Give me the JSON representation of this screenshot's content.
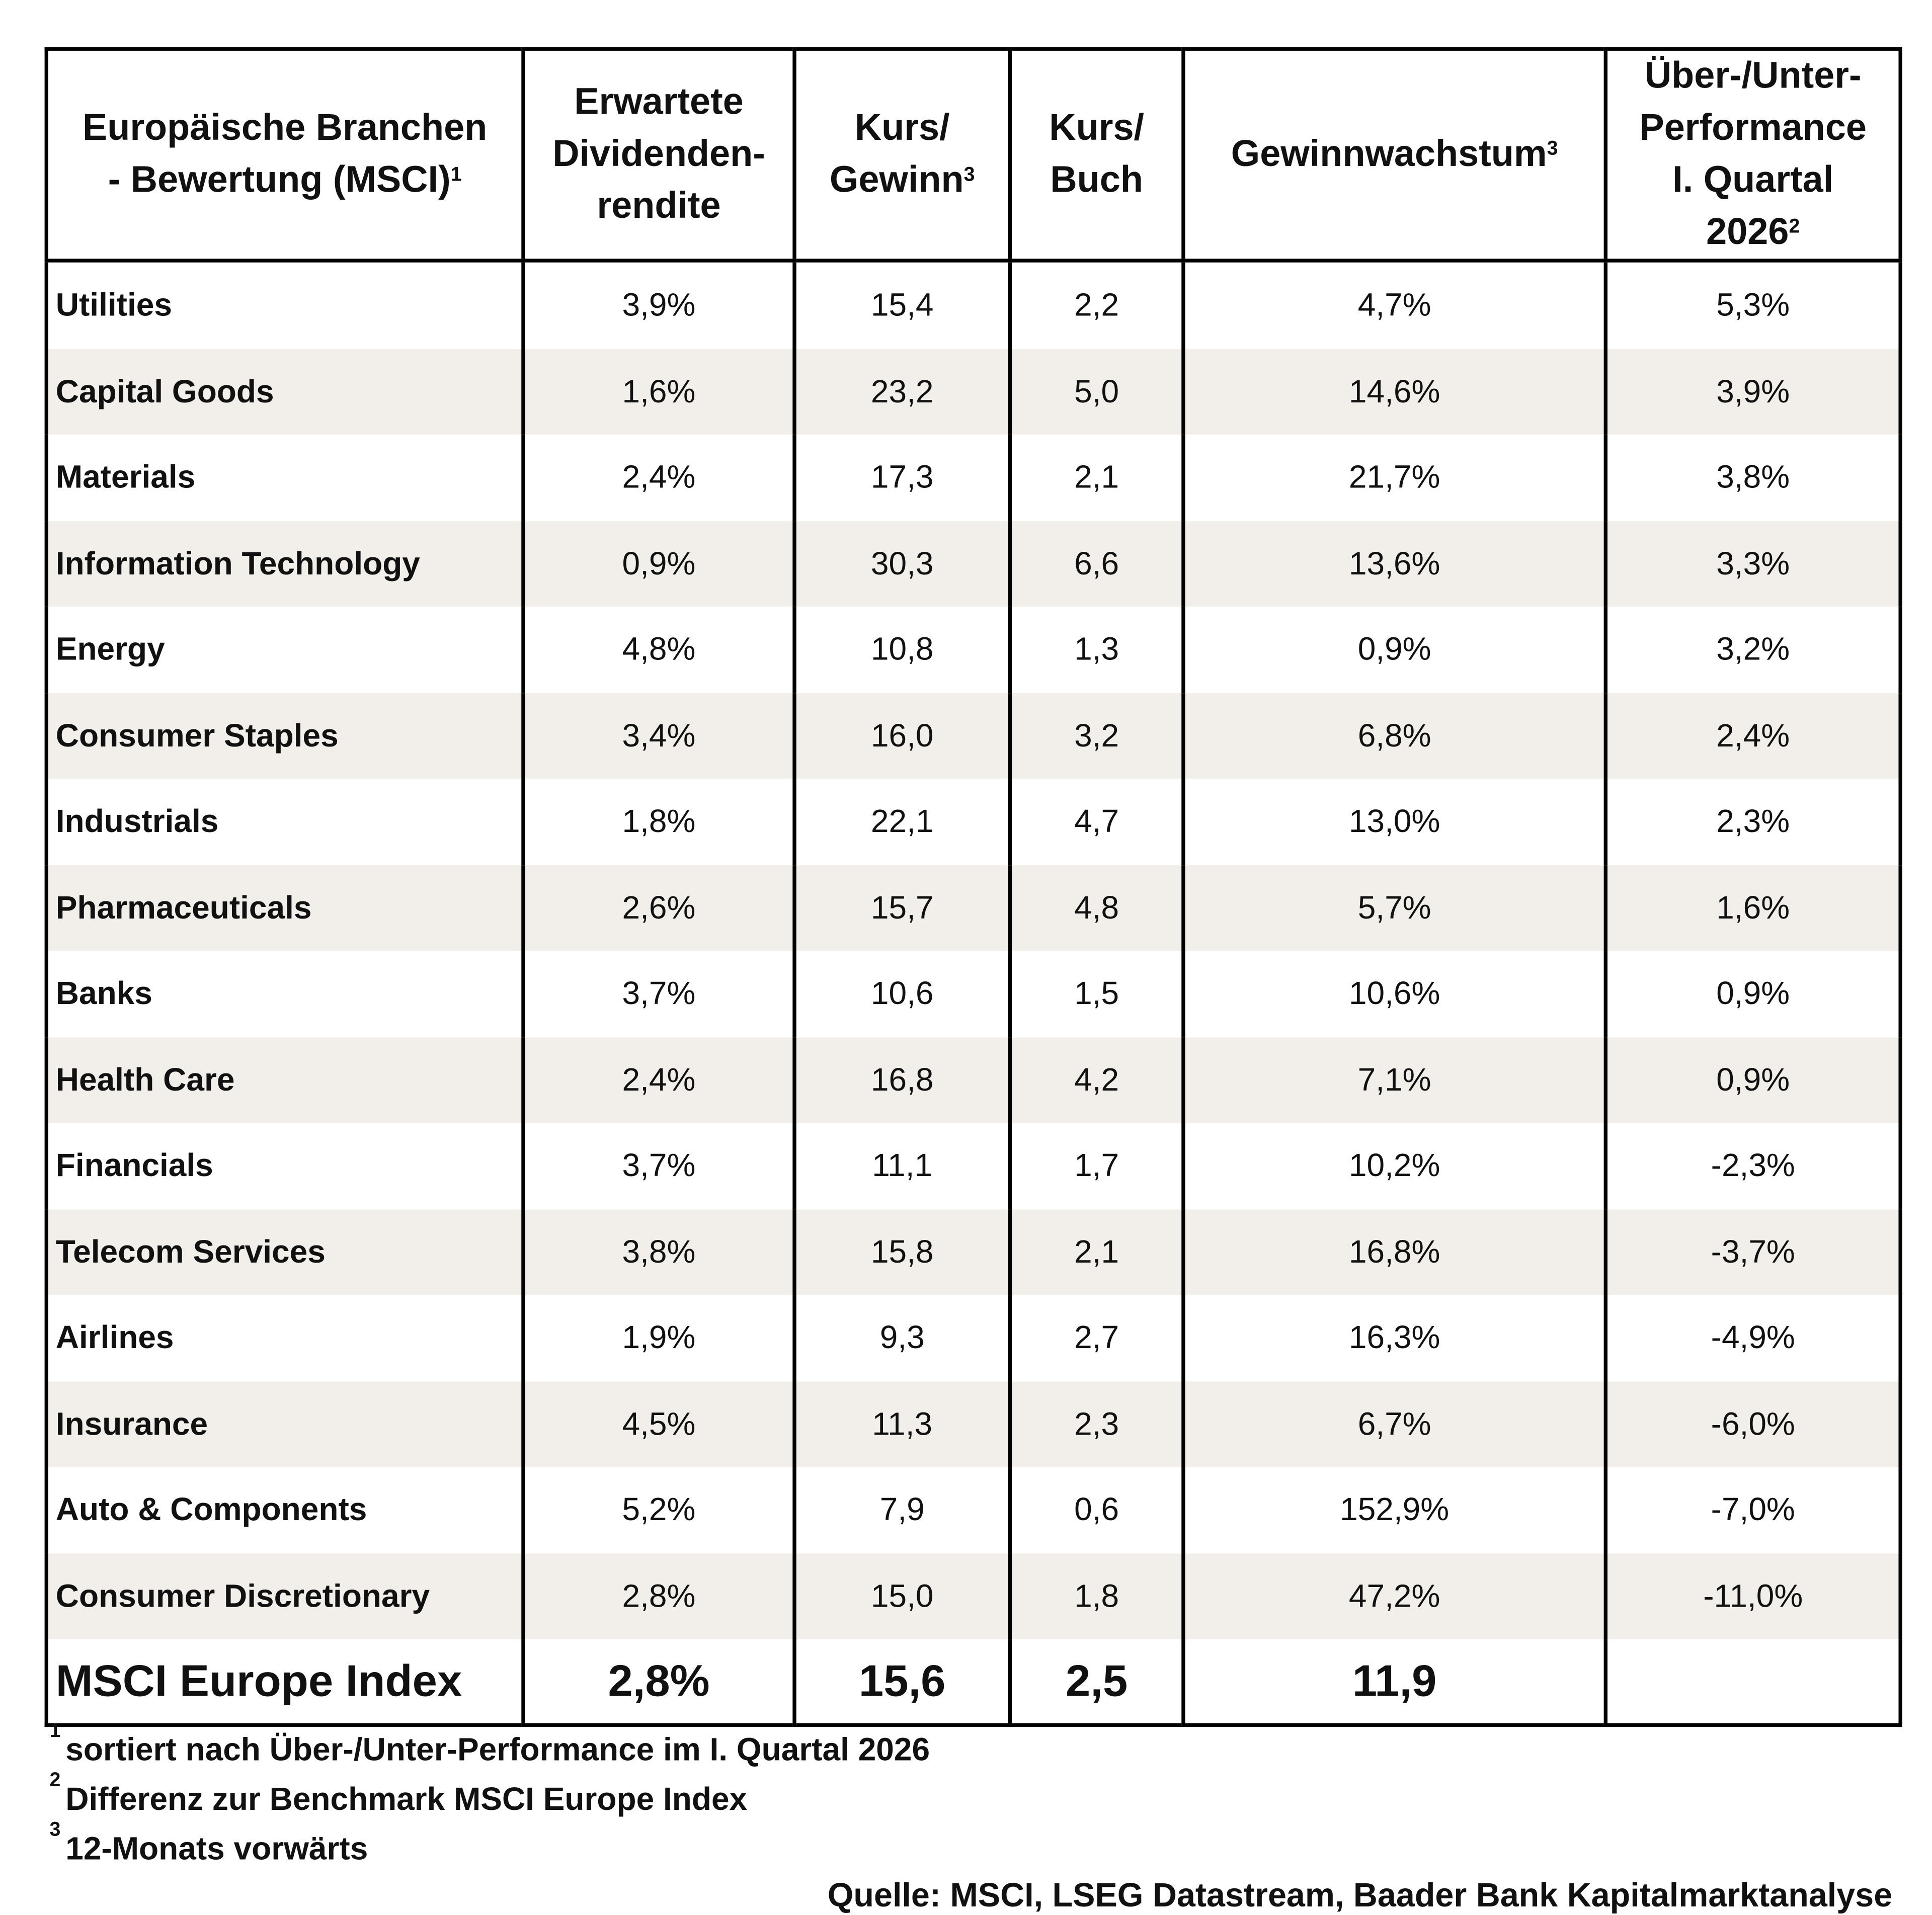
{
  "table": {
    "header": [
      {
        "lines": [
          "Europäische Branchen",
          "- Bewertung (MSCI)"
        ],
        "sup": "1"
      },
      {
        "lines": [
          "Erwartete",
          "Dividenden-",
          "rendite"
        ]
      },
      {
        "lines": [
          "Kurs/",
          "Gewinn"
        ],
        "sup": "3"
      },
      {
        "lines": [
          "Kurs/",
          "Buch"
        ]
      },
      {
        "lines": [
          "Gewinnwachstum"
        ],
        "sup": "3"
      },
      {
        "lines": [
          "Über-/Unter-",
          "Performance",
          "I. Quartal",
          "2026"
        ],
        "sup": "2"
      }
    ],
    "rows": [
      [
        "Utilities",
        "3,9%",
        "15,4",
        "2,2",
        "4,7%",
        "5,3%"
      ],
      [
        "Capital Goods",
        "1,6%",
        "23,2",
        "5,0",
        "14,6%",
        "3,9%"
      ],
      [
        "Materials",
        "2,4%",
        "17,3",
        "2,1",
        "21,7%",
        "3,8%"
      ],
      [
        "Information Technology",
        "0,9%",
        "30,3",
        "6,6",
        "13,6%",
        "3,3%"
      ],
      [
        "Energy",
        "4,8%",
        "10,8",
        "1,3",
        "0,9%",
        "3,2%"
      ],
      [
        "Consumer Staples",
        "3,4%",
        "16,0",
        "3,2",
        "6,8%",
        "2,4%"
      ],
      [
        "Industrials",
        "1,8%",
        "22,1",
        "4,7",
        "13,0%",
        "2,3%"
      ],
      [
        "Pharmaceuticals",
        "2,6%",
        "15,7",
        "4,8",
        "5,7%",
        "1,6%"
      ],
      [
        "Banks",
        "3,7%",
        "10,6",
        "1,5",
        "10,6%",
        "0,9%"
      ],
      [
        "Health Care",
        "2,4%",
        "16,8",
        "4,2",
        "7,1%",
        "0,9%"
      ],
      [
        "Financials",
        "3,7%",
        "11,1",
        "1,7",
        "10,2%",
        "-2,3%"
      ],
      [
        "Telecom Services",
        "3,8%",
        "15,8",
        "2,1",
        "16,8%",
        "-3,7%"
      ],
      [
        "Airlines",
        "1,9%",
        "9,3",
        "2,7",
        "16,3%",
        "-4,9%"
      ],
      [
        "Insurance",
        "4,5%",
        "11,3",
        "2,3",
        "6,7%",
        "-6,0%"
      ],
      [
        "Auto & Components",
        "5,2%",
        "7,9",
        "0,6",
        "152,9%",
        "-7,0%"
      ],
      [
        "Consumer Discretionary",
        "2,8%",
        "15,0",
        "1,8",
        "47,2%",
        "-11,0%"
      ]
    ],
    "total": [
      "MSCI Europe Index",
      "2,8%",
      "15,6",
      "2,5",
      "11,9"
    ]
  },
  "footnotes": [
    {
      "sup": "1",
      "text": "sortiert nach Über-/Unter-Performance im I. Quartal 2026"
    },
    {
      "sup": "2",
      "text": "Differenz zur Benchmark MSCI Europe Index"
    },
    {
      "sup": "3",
      "text": "12-Monats vorwärts"
    }
  ],
  "source": "Quelle: MSCI, LSEG Datastream, Baader Bank Kapitalmarktanalyse"
}
